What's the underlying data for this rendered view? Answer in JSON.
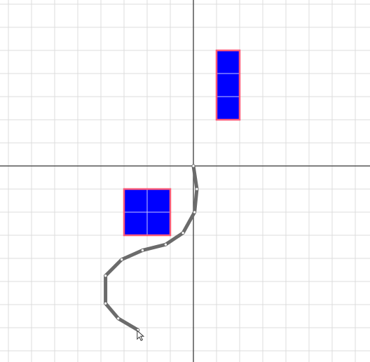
{
  "colors": {
    "background": "#ffffff",
    "grid_minor": "#dcdcdc",
    "axis": "#555555",
    "block_fill": "#0000ff",
    "block_border": "#ff5a78",
    "block_inner_line": "#c8c8ff",
    "path_stroke": "#6b6b6b",
    "path_node": "#ffffff"
  },
  "blocks": [
    {
      "name": "vertical-block-three-cells",
      "cells": [
        [
          1,
          5
        ],
        [
          1,
          4
        ],
        [
          1,
          3
        ]
      ]
    },
    {
      "name": "square-block-four-cells",
      "cells": [
        [
          -3,
          -1
        ],
        [
          -2,
          -1
        ],
        [
          -3,
          -2
        ],
        [
          -2,
          -2
        ]
      ]
    }
  ],
  "drawn_path": {
    "points": [
      [
        0,
        0
      ],
      [
        0.15,
        -1
      ],
      [
        0.05,
        -2
      ],
      [
        -0.45,
        -2.9
      ],
      [
        -1.2,
        -3.4
      ],
      [
        -2.2,
        -3.65
      ],
      [
        -3.1,
        -4.05
      ],
      [
        -3.8,
        -4.75
      ],
      [
        -3.8,
        -5.95
      ],
      [
        -3.25,
        -6.6
      ],
      [
        -2.4,
        -7.1
      ]
    ]
  },
  "cursor": {
    "icon": "mouse-pointer-icon"
  }
}
